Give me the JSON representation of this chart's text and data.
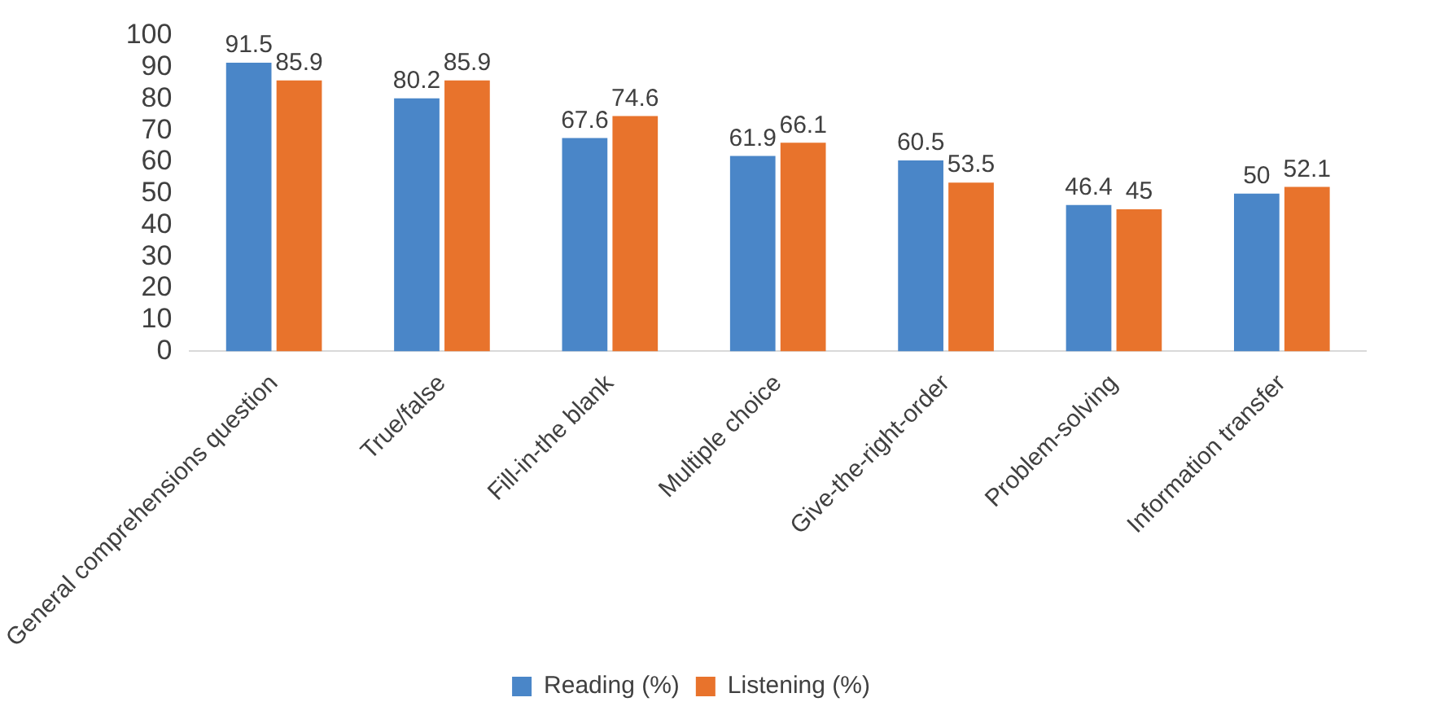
{
  "chart_data": {
    "type": "bar",
    "categories": [
      "General comprehensions question",
      "True/false",
      "Fill-in-the blank",
      "Multiple choice",
      "Give-the-right-order",
      "Problem-solving",
      "Information transfer"
    ],
    "series": [
      {
        "name": "Reading (%)",
        "color": "#4a86c8",
        "values": [
          91.5,
          80.2,
          67.6,
          61.9,
          60.5,
          46.4,
          50
        ]
      },
      {
        "name": "Listening (%)",
        "color": "#e8732c",
        "values": [
          85.9,
          85.9,
          74.6,
          66.1,
          53.5,
          45,
          52.1
        ]
      }
    ],
    "ylim": [
      0,
      100
    ],
    "yticks": [
      0,
      10,
      20,
      30,
      40,
      50,
      60,
      70,
      80,
      90,
      100
    ],
    "grid": false,
    "legend": "bottom",
    "data_labels": true
  }
}
